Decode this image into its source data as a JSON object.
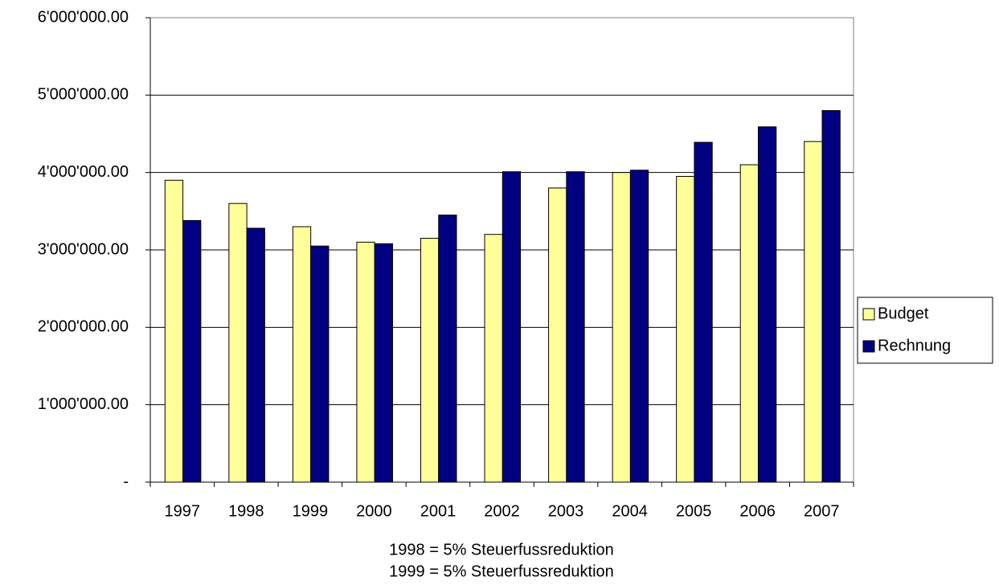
{
  "chart_data": {
    "type": "bar",
    "categories": [
      "1997",
      "1998",
      "1999",
      "2000",
      "2001",
      "2002",
      "2003",
      "2004",
      "2005",
      "2006",
      "2007"
    ],
    "series": [
      {
        "name": "Budget",
        "color": "#ffff99",
        "values": [
          3900000,
          3600000,
          3300000,
          3100000,
          3150000,
          3200000,
          3800000,
          4000000,
          3950000,
          4100000,
          4400000
        ]
      },
      {
        "name": "Rechnung",
        "color": "#000080",
        "values": [
          3380000,
          3280000,
          3050000,
          3080000,
          3450000,
          4010000,
          4010000,
          4030000,
          4390000,
          4590000,
          4800000
        ]
      }
    ],
    "ylim": [
      0,
      6000000
    ],
    "yticks": [
      {
        "value": 0,
        "label": "-"
      },
      {
        "value": 1000000,
        "label": "1'000'000.00"
      },
      {
        "value": 2000000,
        "label": "2'000'000.00"
      },
      {
        "value": 3000000,
        "label": "3'000'000.00"
      },
      {
        "value": 4000000,
        "label": "4'000'000.00"
      },
      {
        "value": 5000000,
        "label": "5'000'000.00"
      },
      {
        "value": 6000000,
        "label": "6'000'000.00"
      }
    ],
    "grid": true,
    "legend": "right",
    "annotations": [
      "1998 = 5% Steuerfussreduktion",
      "1999 = 5% Steuerfussreduktion"
    ]
  }
}
